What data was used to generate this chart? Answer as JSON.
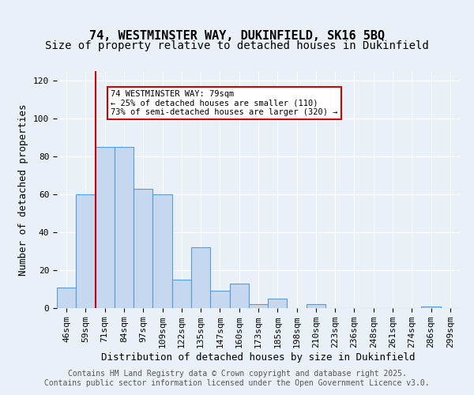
{
  "title_line1": "74, WESTMINSTER WAY, DUKINFIELD, SK16 5BQ",
  "title_line2": "Size of property relative to detached houses in Dukinfield",
  "xlabel": "Distribution of detached houses by size in Dukinfield",
  "ylabel": "Number of detached properties",
  "categories": [
    "46sqm",
    "59sqm",
    "71sqm",
    "84sqm",
    "97sqm",
    "109sqm",
    "122sqm",
    "135sqm",
    "147sqm",
    "160sqm",
    "173sqm",
    "185sqm",
    "198sqm",
    "210sqm",
    "223sqm",
    "236sqm",
    "248sqm",
    "261sqm",
    "274sqm",
    "286sqm",
    "299sqm"
  ],
  "values": [
    11,
    60,
    85,
    85,
    63,
    60,
    15,
    32,
    9,
    13,
    2,
    5,
    0,
    2,
    0,
    0,
    0,
    0,
    0,
    1,
    0
  ],
  "bar_color": "#c5d8f0",
  "bar_edge_color": "#5b9bd5",
  "vline_x": 2,
  "vline_color": "#cc0000",
  "annotation_text": "74 WESTMINSTER WAY: 79sqm\n← 25% of detached houses are smaller (110)\n73% of semi-detached houses are larger (320) →",
  "annotation_box_color": "#ffffff",
  "annotation_box_edge": "#cc0000",
  "ylim": [
    0,
    125
  ],
  "yticks": [
    0,
    20,
    40,
    60,
    80,
    100,
    120
  ],
  "footer_text": "Contains HM Land Registry data © Crown copyright and database right 2025.\nContains public sector information licensed under the Open Government Licence v3.0.",
  "background_color": "#eaf0f8",
  "grid_color": "#ffffff",
  "title_fontsize": 11,
  "subtitle_fontsize": 10,
  "axis_label_fontsize": 9,
  "tick_fontsize": 8,
  "footer_fontsize": 7
}
